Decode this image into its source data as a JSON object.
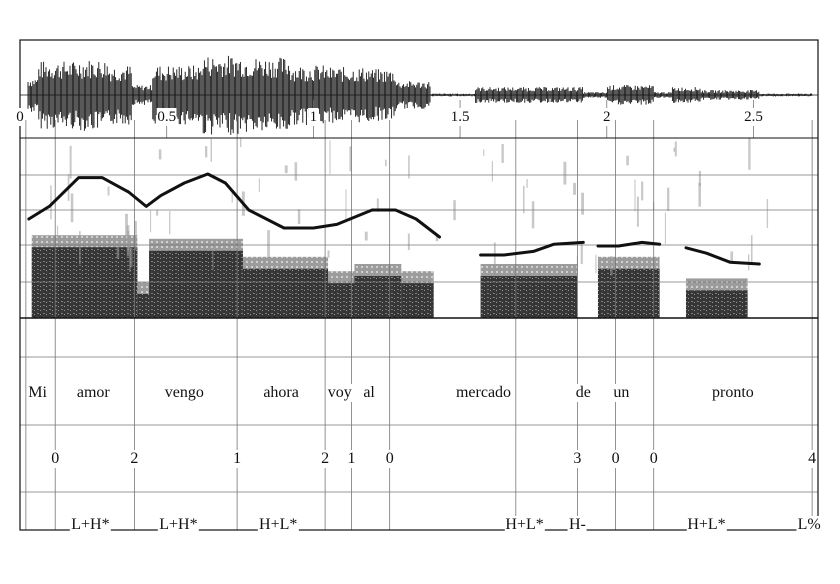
{
  "time_axis": {
    "ticks": [
      "0",
      "0.5",
      "1",
      "1.5",
      "2",
      "2.5"
    ],
    "tick_values": [
      0,
      0.5,
      1,
      1.5,
      2,
      2.5
    ],
    "range": [
      0,
      2.72
    ]
  },
  "words": [
    {
      "text": "Mi",
      "t": 0.06
    },
    {
      "text": "amor",
      "t": 0.25
    },
    {
      "text": "vengo",
      "t": 0.56
    },
    {
      "text": "ahora",
      "t": 0.89
    },
    {
      "text": "voy",
      "t": 1.09
    },
    {
      "text": "al",
      "t": 1.19
    },
    {
      "text": "mercado",
      "t": 1.58
    },
    {
      "text": "de",
      "t": 1.92
    },
    {
      "text": "un",
      "t": 2.05
    },
    {
      "text": "pronto",
      "t": 2.43
    }
  ],
  "break_indices": [
    {
      "text": "0",
      "t": 0.12
    },
    {
      "text": "2",
      "t": 0.39
    },
    {
      "text": "1",
      "t": 0.74
    },
    {
      "text": "2",
      "t": 1.04
    },
    {
      "text": "1",
      "t": 1.13
    },
    {
      "text": "0",
      "t": 1.26
    },
    {
      "text": "3",
      "t": 1.9
    },
    {
      "text": "0",
      "t": 2.03
    },
    {
      "text": "0",
      "t": 2.16
    },
    {
      "text": "4",
      "t": 2.7
    }
  ],
  "tones": [
    {
      "text": "L+H*",
      "t": 0.24
    },
    {
      "text": "L+H*",
      "t": 0.54
    },
    {
      "text": "H+L*",
      "t": 0.88
    },
    {
      "text": "H+L*",
      "t": 1.72
    },
    {
      "text": "H-",
      "t": 1.9
    },
    {
      "text": "H+L*",
      "t": 2.34
    },
    {
      "text": "L%",
      "t": 2.69
    }
  ],
  "pitch_contour": [
    [
      [
        0.03,
        0.55
      ],
      [
        0.1,
        0.62
      ],
      [
        0.2,
        0.78
      ],
      [
        0.28,
        0.78
      ],
      [
        0.37,
        0.7
      ],
      [
        0.43,
        0.62
      ],
      [
        0.48,
        0.68
      ],
      [
        0.56,
        0.75
      ],
      [
        0.64,
        0.8
      ],
      [
        0.7,
        0.75
      ],
      [
        0.78,
        0.6
      ],
      [
        0.9,
        0.5
      ],
      [
        1.0,
        0.5
      ],
      [
        1.08,
        0.52
      ],
      [
        1.2,
        0.6
      ],
      [
        1.28,
        0.6
      ],
      [
        1.35,
        0.55
      ],
      [
        1.43,
        0.45
      ]
    ],
    [
      [
        1.57,
        0.35
      ],
      [
        1.65,
        0.35
      ],
      [
        1.75,
        0.37
      ],
      [
        1.82,
        0.41
      ],
      [
        1.92,
        0.42
      ]
    ],
    [
      [
        1.97,
        0.4
      ],
      [
        2.04,
        0.4
      ],
      [
        2.12,
        0.42
      ],
      [
        2.18,
        0.41
      ]
    ],
    [
      [
        2.27,
        0.39
      ],
      [
        2.34,
        0.36
      ],
      [
        2.42,
        0.31
      ],
      [
        2.52,
        0.3
      ]
    ]
  ],
  "separators": {
    "word_boundaries": [
      0.02,
      0.12,
      0.39,
      0.74,
      1.04,
      1.13,
      1.26,
      1.9,
      2.03,
      2.16,
      2.7
    ],
    "extra_boundaries": [
      1.69
    ]
  },
  "colors": {
    "ink": "#111111",
    "grid": "#777777",
    "background": "#ffffff",
    "page": "#f4f4f4"
  }
}
